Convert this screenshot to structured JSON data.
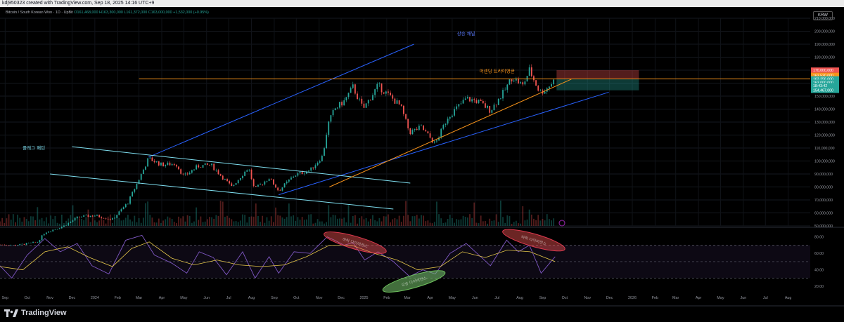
{
  "top_bar": {
    "caption": "kdj950323 created with TradingView.com, Sep 18, 2025 14:16 UTC+9"
  },
  "header": {
    "symbol_line": "Bitcoin / South Korean Won · 1D · UpBit",
    "ohlc": "O161,468,000 H163,300,000 L161,372,000 C163,000,000 +1,532,000 (+0.95%)"
  },
  "currency_badge": "KRW",
  "logo_text": "TradingView",
  "colors": {
    "up": "#26a69a",
    "down": "#ef5350",
    "orange": "#f7931a",
    "blue": "#2962ff",
    "cyan": "#7fdff0",
    "rsi": "#7e57c2",
    "rsi_ma": "#e6c84a"
  },
  "chart_data": [
    {
      "type": "candlestick",
      "title": "Bitcoin / South Korean Won · 1D · UpBit",
      "ylim": [
        50000000,
        210000000
      ],
      "y_ticks": [
        "210,000,000",
        "200,000,000",
        "190,000,000",
        "180,000,000",
        "170,000,000",
        "160,000,000",
        "150,000,000",
        "140,000,000",
        "130,000,000",
        "120,000,000",
        "110,000,000",
        "100,000,000",
        "90,000,000",
        "80,000,000",
        "70,000,000",
        "60,000,000",
        "50,000,000"
      ],
      "x_ticks": [
        "Sep",
        "Oct",
        "Nov",
        "Dec",
        "2024",
        "Feb",
        "Mar",
        "Apr",
        "May",
        "Jun",
        "Jul",
        "Aug",
        "Sep",
        "Oct",
        "Nov",
        "Dec",
        "2025",
        "Feb",
        "Mar",
        "Apr",
        "May",
        "Jun",
        "Jul",
        "Aug",
        "Sep",
        "Oct",
        "Nov",
        "Dec",
        "2026",
        "Feb",
        "Mar",
        "Apr",
        "May",
        "Jun",
        "Jul",
        "Aug"
      ],
      "x_start": "2023-08-25",
      "x_end": "2026-08-31",
      "price_series": [
        {
          "date": "2023-08-25",
          "close": 35500000
        },
        {
          "date": "2023-09-15",
          "close": 35000000
        },
        {
          "date": "2023-10-15",
          "close": 37500000
        },
        {
          "date": "2023-10-25",
          "close": 45000000
        },
        {
          "date": "2023-11-20",
          "close": 50000000
        },
        {
          "date": "2023-12-10",
          "close": 57000000
        },
        {
          "date": "2024-01-01",
          "close": 58000000
        },
        {
          "date": "2024-01-25",
          "close": 55000000
        },
        {
          "date": "2024-02-15",
          "close": 68000000
        },
        {
          "date": "2024-03-01",
          "close": 86000000
        },
        {
          "date": "2024-03-14",
          "close": 102000000
        },
        {
          "date": "2024-04-01",
          "close": 97000000
        },
        {
          "date": "2024-04-20",
          "close": 98000000
        },
        {
          "date": "2024-05-01",
          "close": 88000000
        },
        {
          "date": "2024-05-20",
          "close": 96000000
        },
        {
          "date": "2024-06-07",
          "close": 97000000
        },
        {
          "date": "2024-06-25",
          "close": 86000000
        },
        {
          "date": "2024-07-05",
          "close": 80000000
        },
        {
          "date": "2024-07-28",
          "close": 95000000
        },
        {
          "date": "2024-08-05",
          "close": 78000000
        },
        {
          "date": "2024-08-25",
          "close": 87000000
        },
        {
          "date": "2024-09-07",
          "close": 77000000
        },
        {
          "date": "2024-09-28",
          "close": 89000000
        },
        {
          "date": "2024-10-20",
          "close": 93000000
        },
        {
          "date": "2024-11-06",
          "close": 104000000
        },
        {
          "date": "2024-11-13",
          "close": 128000000
        },
        {
          "date": "2024-11-22",
          "close": 140000000
        },
        {
          "date": "2024-12-05",
          "close": 146000000
        },
        {
          "date": "2024-12-17",
          "close": 157000000
        },
        {
          "date": "2024-12-31",
          "close": 140000000
        },
        {
          "date": "2025-01-20",
          "close": 158000000
        },
        {
          "date": "2025-02-05",
          "close": 150000000
        },
        {
          "date": "2025-02-20",
          "close": 142000000
        },
        {
          "date": "2025-03-04",
          "close": 122000000
        },
        {
          "date": "2025-03-20",
          "close": 126000000
        },
        {
          "date": "2025-04-08",
          "close": 113000000
        },
        {
          "date": "2025-04-25",
          "close": 134000000
        },
        {
          "date": "2025-05-20",
          "close": 148000000
        },
        {
          "date": "2025-06-05",
          "close": 146000000
        },
        {
          "date": "2025-06-22",
          "close": 139000000
        },
        {
          "date": "2025-07-10",
          "close": 153000000
        },
        {
          "date": "2025-07-22",
          "close": 165000000
        },
        {
          "date": "2025-08-05",
          "close": 158000000
        },
        {
          "date": "2025-08-14",
          "close": 170000000
        },
        {
          "date": "2025-08-28",
          "close": 153000000
        },
        {
          "date": "2025-09-05",
          "close": 155000000
        },
        {
          "date": "2025-09-18",
          "close": 163000000
        }
      ],
      "price_labels": [
        {
          "label": "170,000,000",
          "value": 170000000,
          "color": "#ef5350"
        },
        {
          "label": "163,530,000",
          "value": 166000000,
          "color": "#f7931a"
        },
        {
          "label": "163,256,000",
          "value": 163256000,
          "color": "#26a69a"
        },
        {
          "label": "163,000,000",
          "value": 160600000,
          "color": "#26a69a"
        },
        {
          "label": "18:43:42",
          "value": 158000000,
          "color": "#26a69a"
        },
        {
          "label": "154,467,000",
          "value": 154467000,
          "color": "#26a69a"
        }
      ],
      "trendlines": [
        {
          "name": "channel-upper",
          "color": "#2962ff",
          "from": {
            "date": "2024-03-14",
            "value": 103000000
          },
          "to": {
            "date": "2025-03-10",
            "value": 190000000
          }
        },
        {
          "name": "channel-lower",
          "color": "#2962ff",
          "from": {
            "date": "2024-09-07",
            "value": 74000000
          },
          "to": {
            "date": "2025-11-30",
            "value": 153000000
          }
        },
        {
          "name": "flag-upper",
          "color": "#7fdff0",
          "from": {
            "date": "2023-12-01",
            "value": 111000000
          },
          "to": {
            "date": "2025-03-05",
            "value": 83000000
          }
        },
        {
          "name": "flag-lower",
          "color": "#7fdff0",
          "from": {
            "date": "2023-11-01",
            "value": 90000000
          },
          "to": {
            "date": "2025-02-10",
            "value": 63000000
          }
        },
        {
          "name": "ascending-support",
          "color": "#f7931a",
          "from": {
            "date": "2024-11-15",
            "value": 80000000
          },
          "to": {
            "date": "2025-10-10",
            "value": 163000000
          }
        },
        {
          "name": "horizontal-resistance",
          "color": "#f7931a",
          "from": {
            "date": "2024-03-01",
            "value": 163256000
          },
          "to": {
            "date": "2026-08-31",
            "value": 163256000
          }
        }
      ],
      "zones": [
        {
          "name": "target-zone",
          "color": "#ef5350",
          "from_date": "2025-09-20",
          "to_date": "2026-01-10",
          "y_top": 170000000,
          "y_bottom": 163256000
        },
        {
          "name": "stop-zone",
          "color": "#26a69a",
          "from_date": "2025-09-20",
          "to_date": "2026-01-10",
          "y_top": 163256000,
          "y_bottom": 154467000
        }
      ],
      "annotations": [
        {
          "text": "상승 채널",
          "color": "#5b7bff",
          "date": "2025-05-20",
          "value": 197000000
        },
        {
          "text": "어센딩 트라이앵글",
          "color": "#f7931a",
          "date": "2025-07-01",
          "value": 168000000
        },
        {
          "text": "플래그 패턴",
          "color": "#7fdff0",
          "date": "2023-10-10",
          "value": 109000000
        }
      ]
    },
    {
      "type": "line",
      "title": "",
      "ylim": [
        15,
        90
      ],
      "y_ticks": [
        "80.00",
        "60.00",
        "40.00",
        "20.00"
      ],
      "bands": [
        70,
        50,
        30
      ],
      "series": [
        {
          "color": "#7e57c2",
          "points": [
            {
              "date": "2023-08-25",
              "value": 45
            },
            {
              "date": "2023-09-10",
              "value": 30
            },
            {
              "date": "2023-10-01",
              "value": 58
            },
            {
              "date": "2023-10-25",
              "value": 78
            },
            {
              "date": "2023-11-15",
              "value": 62
            },
            {
              "date": "2023-12-08",
              "value": 72
            },
            {
              "date": "2023-12-28",
              "value": 45
            },
            {
              "date": "2024-01-20",
              "value": 35
            },
            {
              "date": "2024-02-12",
              "value": 76
            },
            {
              "date": "2024-03-05",
              "value": 82
            },
            {
              "date": "2024-03-22",
              "value": 58
            },
            {
              "date": "2024-04-15",
              "value": 48
            },
            {
              "date": "2024-05-05",
              "value": 36
            },
            {
              "date": "2024-05-22",
              "value": 62
            },
            {
              "date": "2024-06-10",
              "value": 55
            },
            {
              "date": "2024-06-28",
              "value": 34
            },
            {
              "date": "2024-07-20",
              "value": 62
            },
            {
              "date": "2024-08-06",
              "value": 30
            },
            {
              "date": "2024-08-25",
              "value": 56
            },
            {
              "date": "2024-09-07",
              "value": 36
            },
            {
              "date": "2024-09-28",
              "value": 62
            },
            {
              "date": "2024-10-20",
              "value": 60
            },
            {
              "date": "2024-11-12",
              "value": 80
            },
            {
              "date": "2024-11-22",
              "value": 76
            },
            {
              "date": "2024-12-05",
              "value": 70
            },
            {
              "date": "2024-12-17",
              "value": 73
            },
            {
              "date": "2025-01-02",
              "value": 52
            },
            {
              "date": "2025-01-20",
              "value": 62
            },
            {
              "date": "2025-02-10",
              "value": 50
            },
            {
              "date": "2025-03-04",
              "value": 32
            },
            {
              "date": "2025-03-22",
              "value": 40
            },
            {
              "date": "2025-04-08",
              "value": 35
            },
            {
              "date": "2025-04-28",
              "value": 60
            },
            {
              "date": "2025-05-20",
              "value": 72
            },
            {
              "date": "2025-06-10",
              "value": 55
            },
            {
              "date": "2025-06-22",
              "value": 45
            },
            {
              "date": "2025-07-14",
              "value": 76
            },
            {
              "date": "2025-07-30",
              "value": 62
            },
            {
              "date": "2025-08-14",
              "value": 70
            },
            {
              "date": "2025-08-30",
              "value": 36
            },
            {
              "date": "2025-09-18",
              "value": 56
            }
          ]
        },
        {
          "color": "#e6c84a",
          "points": [
            {
              "date": "2023-08-25",
              "value": 44
            },
            {
              "date": "2023-09-25",
              "value": 40
            },
            {
              "date": "2023-10-25",
              "value": 62
            },
            {
              "date": "2023-11-25",
              "value": 68
            },
            {
              "date": "2023-12-25",
              "value": 55
            },
            {
              "date": "2024-01-25",
              "value": 44
            },
            {
              "date": "2024-02-20",
              "value": 66
            },
            {
              "date": "2024-03-15",
              "value": 74
            },
            {
              "date": "2024-04-15",
              "value": 54
            },
            {
              "date": "2024-05-15",
              "value": 46
            },
            {
              "date": "2024-06-15",
              "value": 52
            },
            {
              "date": "2024-07-15",
              "value": 46
            },
            {
              "date": "2024-08-15",
              "value": 44
            },
            {
              "date": "2024-09-15",
              "value": 46
            },
            {
              "date": "2024-10-15",
              "value": 56
            },
            {
              "date": "2024-11-15",
              "value": 70
            },
            {
              "date": "2024-12-15",
              "value": 70
            },
            {
              "date": "2025-01-15",
              "value": 60
            },
            {
              "date": "2025-02-15",
              "value": 52
            },
            {
              "date": "2025-03-15",
              "value": 40
            },
            {
              "date": "2025-04-15",
              "value": 44
            },
            {
              "date": "2025-05-15",
              "value": 62
            },
            {
              "date": "2025-06-15",
              "value": 55
            },
            {
              "date": "2025-07-15",
              "value": 64
            },
            {
              "date": "2025-08-15",
              "value": 62
            },
            {
              "date": "2025-09-18",
              "value": 50
            }
          ]
        }
      ],
      "ellipses": [
        {
          "color": "#e0394f",
          "fill": "rgba(239,83,80,0.45)",
          "date": "2024-12-20",
          "value": 73,
          "text": "하락 다이버전스"
        },
        {
          "color": "#6dbf5c",
          "fill": "rgba(120,200,110,0.55)",
          "date": "2025-03-10",
          "value": 26,
          "text": "상승 다이버전스"
        },
        {
          "color": "#e0394f",
          "fill": "rgba(239,83,80,0.45)",
          "date": "2025-08-20",
          "value": 76,
          "text": "하락 다이버전스"
        }
      ]
    }
  ]
}
